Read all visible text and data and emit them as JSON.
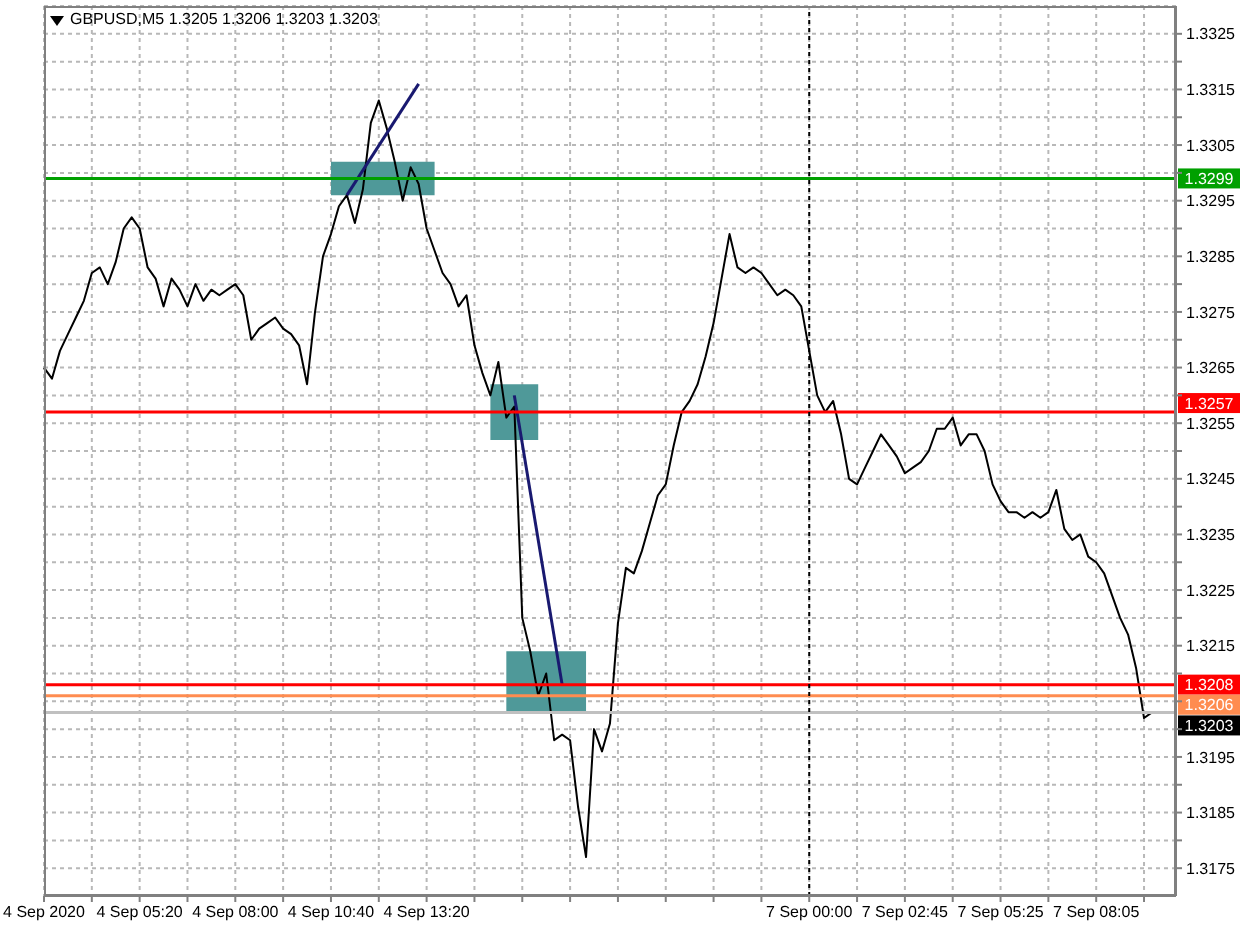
{
  "chart_data": {
    "type": "line",
    "title": "GBPUSD,M5 1.3205 1.3206 1.3203 1.3203",
    "categories": [
      "4 Sep 2020",
      null,
      null,
      null,
      null,
      null,
      null,
      null,
      null,
      null,
      null,
      null,
      "4 Sep 05:20",
      null,
      null,
      null,
      null,
      null,
      null,
      null,
      null,
      null,
      null,
      null,
      "4 Sep 08:00",
      null,
      null,
      null,
      null,
      null,
      null,
      null,
      null,
      null,
      null,
      null,
      "4 Sep 10:40",
      null,
      null,
      null,
      null,
      null,
      null,
      null,
      null,
      null,
      null,
      null,
      "4 Sep 13:20",
      null,
      null,
      null,
      null,
      null,
      null,
      null,
      null,
      null,
      null,
      null,
      null,
      null,
      null,
      null,
      null,
      null,
      null,
      null,
      null,
      null,
      null,
      null,
      null,
      null,
      null,
      null,
      null,
      null,
      null,
      null,
      null,
      null,
      null,
      null,
      null,
      null,
      null,
      null,
      null,
      null,
      null,
      null,
      null,
      null,
      null,
      null,
      "7 Sep 00:00",
      null,
      null,
      null,
      null,
      null,
      null,
      null,
      null,
      null,
      null,
      null,
      "7 Sep 02:45",
      null,
      null,
      null,
      null,
      null,
      null,
      null,
      null,
      null,
      null,
      null,
      "7 Sep 05:25",
      null,
      null,
      null,
      null,
      null,
      null,
      null,
      null,
      null,
      null,
      null,
      "7 Sep 08:05",
      null,
      null,
      null,
      null,
      null,
      null,
      null
    ],
    "series": [
      {
        "type": "area",
        "color": "#4f9999",
        "values": [
          null,
          null,
          null,
          null,
          null,
          null,
          null,
          null,
          null,
          null,
          null,
          null,
          null,
          null,
          null,
          null,
          null,
          null,
          null,
          null,
          null,
          null,
          null,
          null,
          null,
          null,
          null,
          null,
          null,
          null,
          null,
          null,
          null,
          null,
          null,
          null,
          null,
          null,
          null,
          null,
          null,
          null,
          null,
          null,
          null,
          null,
          null,
          null,
          null,
          null,
          null,
          null,
          null,
          null,
          null,
          null,
          null,
          null,
          null,
          null,
          null,
          null,
          null,
          null,
          null,
          null,
          null,
          null,
          null,
          null,
          null,
          null,
          null,
          null,
          null,
          null,
          null,
          null,
          null,
          null,
          null,
          null,
          null,
          null,
          null,
          null,
          null,
          null,
          null,
          null,
          null,
          null,
          null,
          null,
          null,
          null,
          null,
          null,
          null,
          null,
          null,
          null,
          null,
          null,
          null,
          null,
          null,
          null,
          null,
          null,
          null,
          null,
          null,
          null,
          null,
          null,
          null,
          null,
          null,
          null,
          null,
          null,
          null,
          null,
          null,
          null,
          null,
          null,
          null,
          null,
          null,
          null,
          null,
          null,
          null,
          null,
          null,
          null,
          null,
          null
        ],
        "lower": [
          null,
          null,
          null,
          null,
          null,
          null,
          null,
          null,
          null,
          null,
          null,
          null,
          null,
          null,
          null,
          null,
          null,
          null,
          null,
          null,
          null,
          null,
          null,
          null,
          null,
          null,
          null,
          null,
          null,
          null,
          null,
          null,
          null,
          null,
          null,
          null,
          1.3296,
          1.3296,
          1.3296,
          1.3296,
          1.3296,
          1.3296,
          1.3296,
          1.3296,
          1.3296,
          1.3296,
          1.3296,
          1.3296,
          1.3296,
          1.3296,
          null,
          null,
          null,
          null,
          null,
          null,
          null,
          null,
          null,
          null,
          null,
          null,
          null,
          null,
          null,
          null,
          null,
          null,
          null,
          null,
          null,
          null,
          null,
          null,
          null,
          null,
          null,
          null,
          null,
          null,
          null,
          null,
          null,
          null,
          null,
          null,
          null,
          null,
          null,
          null,
          null,
          null,
          null,
          null,
          null,
          null,
          null,
          null,
          null,
          null,
          null,
          null,
          null,
          null,
          null,
          null,
          null,
          null,
          null,
          null,
          null,
          null,
          null,
          null,
          null,
          null,
          null,
          null,
          null,
          null,
          null,
          null,
          null,
          null,
          null,
          null,
          null,
          null,
          null,
          null,
          null,
          null,
          null,
          null,
          null,
          null,
          null,
          null,
          null,
          null
        ],
        "upper": [
          null,
          null,
          null,
          null,
          null,
          null,
          null,
          null,
          null,
          null,
          null,
          null,
          null,
          null,
          null,
          null,
          null,
          null,
          null,
          null,
          null,
          null,
          null,
          null,
          null,
          null,
          null,
          null,
          null,
          null,
          null,
          null,
          null,
          null,
          null,
          null,
          1.3302,
          1.3302,
          1.3302,
          1.3302,
          1.3302,
          1.3302,
          1.3302,
          1.3302,
          1.3302,
          1.3302,
          1.3302,
          1.3302,
          1.3302,
          1.3302,
          null,
          null,
          null,
          null,
          null,
          null,
          null,
          null,
          null,
          null,
          null,
          null,
          null,
          null,
          null,
          null,
          null,
          null,
          null,
          null,
          null,
          null,
          null,
          null,
          null,
          null,
          null,
          null,
          null,
          null,
          null,
          null,
          null,
          null,
          null,
          null,
          null,
          null,
          null,
          null,
          null,
          null,
          null,
          null,
          null,
          null,
          null,
          null,
          null,
          null,
          null,
          null,
          null,
          null,
          null,
          null,
          null,
          null,
          null,
          null,
          null,
          null,
          null,
          null,
          null,
          null,
          null,
          null,
          null,
          null,
          null,
          null,
          null,
          null,
          null,
          null,
          null,
          null,
          null,
          null,
          null,
          null,
          null,
          null,
          null,
          null,
          null,
          null,
          null,
          null
        ]
      },
      {
        "type": "area",
        "color": "#4f9999",
        "values": [
          null,
          null,
          null,
          null,
          null,
          null,
          null,
          null,
          null,
          null,
          null,
          null,
          null,
          null,
          null,
          null,
          null,
          null,
          null,
          null,
          null,
          null,
          null,
          null,
          null,
          null,
          null,
          null,
          null,
          null,
          null,
          null,
          null,
          null,
          null,
          null,
          null,
          null,
          null,
          null,
          null,
          null,
          null,
          null,
          null,
          null,
          null,
          null,
          null,
          null,
          null,
          null,
          null,
          null,
          null,
          null,
          null,
          null,
          null,
          null,
          null,
          null,
          null,
          null,
          null,
          null,
          null,
          null,
          null,
          null,
          null,
          null,
          null,
          null,
          null,
          null,
          null,
          null,
          null,
          null,
          null,
          null,
          null,
          null,
          null,
          null,
          null,
          null,
          null,
          null,
          null,
          null,
          null,
          null,
          null,
          null,
          null,
          null,
          null,
          null,
          null,
          null,
          null,
          null,
          null,
          null,
          null,
          null,
          null,
          null,
          null,
          null,
          null,
          null,
          null,
          null,
          null,
          null,
          null,
          null,
          null,
          null,
          null,
          null,
          null,
          null,
          null,
          null,
          null,
          null,
          null,
          null,
          null,
          null,
          null,
          null,
          null,
          null,
          null,
          null
        ],
        "lower": [
          null,
          null,
          null,
          null,
          null,
          null,
          null,
          null,
          null,
          null,
          null,
          null,
          null,
          null,
          null,
          null,
          null,
          null,
          null,
          null,
          null,
          null,
          null,
          null,
          null,
          null,
          null,
          null,
          null,
          null,
          null,
          null,
          null,
          null,
          null,
          null,
          null,
          null,
          null,
          null,
          null,
          null,
          null,
          null,
          null,
          null,
          null,
          null,
          null,
          null,
          null,
          null,
          null,
          null,
          null,
          null,
          1.3252,
          1.3252,
          1.3252,
          1.3252,
          1.3252,
          1.3252,
          1.3252,
          null,
          null,
          null,
          null,
          null,
          null,
          null,
          null,
          null,
          null,
          null,
          null,
          null,
          null,
          null,
          null,
          null,
          null,
          null,
          null,
          null,
          null,
          null,
          null,
          null,
          null,
          null,
          null,
          null,
          null,
          null,
          null,
          null,
          null,
          null,
          null,
          null,
          null,
          null,
          null,
          null,
          null,
          null,
          null,
          null,
          null,
          null,
          null,
          null,
          null,
          null,
          null,
          null,
          null,
          null,
          null,
          null,
          null,
          null,
          null,
          null,
          null,
          null,
          null,
          null,
          null,
          null,
          null,
          null,
          null,
          null,
          null,
          null,
          null,
          null,
          null,
          null
        ],
        "upper": [
          null,
          null,
          null,
          null,
          null,
          null,
          null,
          null,
          null,
          null,
          null,
          null,
          null,
          null,
          null,
          null,
          null,
          null,
          null,
          null,
          null,
          null,
          null,
          null,
          null,
          null,
          null,
          null,
          null,
          null,
          null,
          null,
          null,
          null,
          null,
          null,
          null,
          null,
          null,
          null,
          null,
          null,
          null,
          null,
          null,
          null,
          null,
          null,
          null,
          null,
          null,
          null,
          null,
          null,
          null,
          null,
          1.3262,
          1.3262,
          1.3262,
          1.3262,
          1.3262,
          1.3262,
          1.3262,
          null,
          null,
          null,
          null,
          null,
          null,
          null,
          null,
          null,
          null,
          null,
          null,
          null,
          null,
          null,
          null,
          null,
          null,
          null,
          null,
          null,
          null,
          null,
          null,
          null,
          null,
          null,
          null,
          null,
          null,
          null,
          null,
          null,
          null,
          null,
          null,
          null,
          null,
          null,
          null,
          null,
          null,
          null,
          null,
          null,
          null,
          null,
          null,
          null,
          null,
          null,
          null,
          null,
          null,
          null,
          null,
          null,
          null,
          null,
          null,
          null,
          null,
          null,
          null,
          null,
          null,
          null,
          null,
          null,
          null,
          null,
          null,
          null,
          null,
          null,
          null,
          null
        ]
      },
      {
        "type": "area",
        "color": "#4f9999",
        "values": [
          null,
          null,
          null,
          null,
          null,
          null,
          null,
          null,
          null,
          null,
          null,
          null,
          null,
          null,
          null,
          null,
          null,
          null,
          null,
          null,
          null,
          null,
          null,
          null,
          null,
          null,
          null,
          null,
          null,
          null,
          null,
          null,
          null,
          null,
          null,
          null,
          null,
          null,
          null,
          null,
          null,
          null,
          null,
          null,
          null,
          null,
          null,
          null,
          null,
          null,
          null,
          null,
          null,
          null,
          null,
          null,
          null,
          null,
          null,
          null,
          null,
          null,
          null,
          null,
          null,
          null,
          null,
          null,
          null,
          null,
          null,
          null,
          null,
          null,
          null,
          null,
          null,
          null,
          null,
          null,
          null,
          null,
          null,
          null,
          null,
          null,
          null,
          null,
          null,
          null,
          null,
          null,
          null,
          null,
          null,
          null,
          null,
          null,
          null,
          null,
          null,
          null,
          null,
          null,
          null,
          null,
          null,
          null,
          null,
          null,
          null,
          null,
          null,
          null,
          null,
          null,
          null,
          null,
          null,
          null,
          null,
          null,
          null,
          null,
          null,
          null,
          null,
          null,
          null,
          null,
          null,
          null,
          null,
          null,
          null,
          null,
          null,
          null,
          null,
          null
        ],
        "lower": [
          null,
          null,
          null,
          null,
          null,
          null,
          null,
          null,
          null,
          null,
          null,
          null,
          null,
          null,
          null,
          null,
          null,
          null,
          null,
          null,
          null,
          null,
          null,
          null,
          null,
          null,
          null,
          null,
          null,
          null,
          null,
          null,
          null,
          null,
          null,
          null,
          null,
          null,
          null,
          null,
          null,
          null,
          null,
          null,
          null,
          null,
          null,
          null,
          null,
          null,
          null,
          null,
          null,
          null,
          null,
          null,
          null,
          null,
          1.3203,
          1.3203,
          1.3203,
          1.3203,
          1.3203,
          1.3203,
          1.3203,
          1.3203,
          1.3203,
          1.3203,
          1.3203,
          null,
          null,
          null,
          null,
          null,
          null,
          null,
          null,
          null,
          null,
          null,
          null,
          null,
          null,
          null,
          null,
          null,
          null,
          null,
          null,
          null,
          null,
          null,
          null,
          null,
          null,
          null,
          null,
          null,
          null,
          null,
          null,
          null,
          null,
          null,
          null,
          null,
          null,
          null,
          null,
          null,
          null,
          null,
          null,
          null,
          null,
          null,
          null,
          null,
          null,
          null,
          null,
          null,
          null,
          null,
          null,
          null,
          null,
          null,
          null,
          null,
          null,
          null,
          null,
          null,
          null,
          null,
          null,
          null,
          null,
          null
        ],
        "upper": [
          null,
          null,
          null,
          null,
          null,
          null,
          null,
          null,
          null,
          null,
          null,
          null,
          null,
          null,
          null,
          null,
          null,
          null,
          null,
          null,
          null,
          null,
          null,
          null,
          null,
          null,
          null,
          null,
          null,
          null,
          null,
          null,
          null,
          null,
          null,
          null,
          null,
          null,
          null,
          null,
          null,
          null,
          null,
          null,
          null,
          null,
          null,
          null,
          null,
          null,
          null,
          null,
          null,
          null,
          null,
          null,
          null,
          null,
          1.3214,
          1.3214,
          1.3214,
          1.3214,
          1.3214,
          1.3214,
          1.3214,
          1.3214,
          1.3214,
          1.3214,
          1.3214,
          null,
          null,
          null,
          null,
          null,
          null,
          null,
          null,
          null,
          null,
          null,
          null,
          null,
          null,
          null,
          null,
          null,
          null,
          null,
          null,
          null,
          null,
          null,
          null,
          null,
          null,
          null,
          null,
          null,
          null,
          null,
          null,
          null,
          null,
          null,
          null,
          null,
          null,
          null,
          null,
          null,
          null,
          null,
          null,
          null,
          null,
          null,
          null,
          null,
          null,
          null,
          null,
          null,
          null,
          null,
          null,
          null,
          null,
          null,
          null,
          null,
          null,
          null,
          null,
          null,
          null,
          null,
          null,
          null,
          null,
          null
        ]
      },
      {
        "color": "#000000",
        "values": [
          1.3265,
          1.3263,
          1.3268,
          1.3271,
          1.3274,
          1.3277,
          1.3282,
          1.3283,
          1.328,
          1.3284,
          1.329,
          1.3292,
          1.329,
          1.3283,
          1.3281,
          1.3276,
          1.3281,
          1.3279,
          1.3276,
          1.328,
          1.3277,
          1.3279,
          1.3278,
          1.3279,
          1.328,
          1.3278,
          1.327,
          1.3272,
          1.3273,
          1.3274,
          1.3272,
          1.3271,
          1.3269,
          1.3262,
          1.3275,
          1.3285,
          1.3289,
          1.3294,
          1.3296,
          1.3291,
          1.3297,
          1.3309,
          1.3313,
          1.3308,
          1.3302,
          1.3295,
          1.3301,
          1.3298,
          1.329,
          1.3286,
          1.3282,
          1.328,
          1.3276,
          1.3278,
          1.3269,
          1.3264,
          1.326,
          1.3266,
          1.3256,
          1.3258,
          1.322,
          1.3214,
          1.3206,
          1.321,
          1.3198,
          1.3199,
          1.3198,
          1.3186,
          1.3177,
          1.32,
          1.3196,
          1.3201,
          1.3219,
          1.3229,
          1.3228,
          1.3232,
          1.3237,
          1.3242,
          1.3244,
          1.3251,
          1.3257,
          1.3259,
          1.3262,
          1.3267,
          1.3273,
          1.3281,
          1.3289,
          1.3283,
          1.3282,
          1.3283,
          1.3282,
          1.328,
          1.3278,
          1.3279,
          1.3278,
          1.3276,
          1.3268,
          1.326,
          1.3257,
          1.3259,
          1.3253,
          1.3245,
          1.3244,
          1.3247,
          1.325,
          1.3253,
          1.3251,
          1.3249,
          1.3246,
          1.3247,
          1.3248,
          1.325,
          1.3254,
          1.3254,
          1.3256,
          1.3251,
          1.3253,
          1.3253,
          1.325,
          1.3244,
          1.3241,
          1.3239,
          1.3239,
          1.3238,
          1.3239,
          1.3238,
          1.3239,
          1.3243,
          1.3236,
          1.3234,
          1.3235,
          1.3231,
          1.323,
          1.3228,
          1.3224,
          1.322,
          1.3217,
          1.3211,
          1.3202,
          1.3203
        ]
      },
      {
        "type": "line",
        "color": "#191970",
        "values": [
          null,
          null,
          null,
          null,
          null,
          null,
          null,
          null,
          null,
          null,
          null,
          null,
          null,
          null,
          null,
          null,
          null,
          null,
          null,
          null,
          null,
          null,
          null,
          null,
          null,
          null,
          null,
          null,
          null,
          null,
          null,
          null,
          null,
          null,
          null,
          null,
          null,
          null,
          1.3296,
          null,
          null,
          null,
          null,
          null,
          null,
          null,
          null,
          1.3316,
          null,
          null,
          null,
          null,
          null,
          null,
          null,
          null,
          null,
          null,
          null,
          null,
          null,
          null,
          null,
          null,
          null,
          null,
          null,
          null,
          null,
          null,
          null,
          null,
          null,
          null,
          null,
          null,
          null,
          null,
          null,
          null,
          null,
          null,
          null,
          null,
          null,
          null,
          null,
          null,
          null,
          null,
          null,
          null,
          null,
          null,
          null,
          null,
          null,
          null,
          null,
          null,
          null,
          null,
          null,
          null,
          null,
          null,
          null,
          null,
          null,
          null,
          null,
          null,
          null,
          null,
          null,
          null,
          null,
          null,
          null,
          null,
          null,
          null,
          null,
          null,
          null,
          null,
          null,
          null,
          null,
          null,
          null,
          null,
          null,
          null,
          null,
          null,
          null,
          null,
          null,
          null
        ]
      },
      {
        "type": "line",
        "color": "#191970",
        "values": [
          null,
          null,
          null,
          null,
          null,
          null,
          null,
          null,
          null,
          null,
          null,
          null,
          null,
          null,
          null,
          null,
          null,
          null,
          null,
          null,
          null,
          null,
          null,
          null,
          null,
          null,
          null,
          null,
          null,
          null,
          null,
          null,
          null,
          null,
          null,
          null,
          null,
          null,
          null,
          null,
          null,
          null,
          null,
          null,
          null,
          null,
          null,
          null,
          null,
          null,
          null,
          null,
          null,
          null,
          null,
          null,
          null,
          null,
          null,
          1.326,
          null,
          null,
          null,
          null,
          null,
          1.3208,
          null,
          null,
          null,
          null,
          null,
          null,
          null,
          null,
          null,
          null,
          null,
          null,
          null,
          null,
          null,
          null,
          null,
          null,
          null,
          null,
          null,
          null,
          null,
          null,
          null,
          null,
          null,
          null,
          null,
          null,
          null,
          null,
          null,
          null,
          null,
          null,
          null,
          null,
          null,
          null,
          null,
          null,
          null,
          null,
          null,
          null,
          null,
          null,
          null,
          null,
          null,
          null,
          null,
          null,
          null,
          null,
          null,
          null,
          null,
          null,
          null,
          null,
          null,
          null,
          null,
          null,
          null,
          null,
          null,
          null,
          null,
          null,
          null,
          null
        ]
      }
    ],
    "ylim": [
      1.317,
      1.333
    ],
    "yticks": [
      1.3175,
      {
        "value": 1.318,
        "label": null
      },
      1.3185,
      {
        "value": 1.319,
        "label": null
      },
      1.3195,
      {
        "value": 1.32,
        "label": null
      },
      {
        "value": 1.3205,
        "label": null
      },
      {
        "value": 1.321,
        "label": null
      },
      1.3215,
      {
        "value": 1.322,
        "label": null
      },
      1.3225,
      {
        "value": 1.323,
        "label": null
      },
      1.3235,
      {
        "value": 1.324,
        "label": null
      },
      1.3245,
      {
        "value": 1.325,
        "label": null
      },
      1.3255,
      {
        "value": 1.326,
        "label": null
      },
      1.3265,
      {
        "value": 1.327,
        "label": null
      },
      1.3275,
      {
        "value": 1.328,
        "label": null
      },
      1.3285,
      {
        "value": 1.329,
        "label": null
      },
      1.3295,
      {
        "value": 1.33,
        "label": null
      },
      1.3305,
      {
        "value": 1.331,
        "label": null
      },
      1.3315,
      {
        "value": 1.332,
        "label": null
      },
      1.3325
    ],
    "grid": true,
    "ref_lines": [
      {
        "axis": "y",
        "value": 1.3299,
        "label": "1.3299",
        "color": "#00a000"
      },
      {
        "axis": "y",
        "value": 1.3257,
        "label": "1.3257",
        "color": "#ff0000"
      },
      {
        "axis": "y",
        "value": 1.3208,
        "label": "1.3208",
        "color": "#ff0000"
      },
      {
        "axis": "y",
        "value": 1.3206,
        "label": "1.3206",
        "color": "#ff8c50"
      },
      {
        "axis": "y",
        "value": 1.3203,
        "label": "1.3203",
        "color": "#c0c0c0"
      },
      {
        "axis": "x",
        "value": "7 Sep 00:00",
        "color": "#000000",
        "line_style": "dotted"
      }
    ]
  }
}
